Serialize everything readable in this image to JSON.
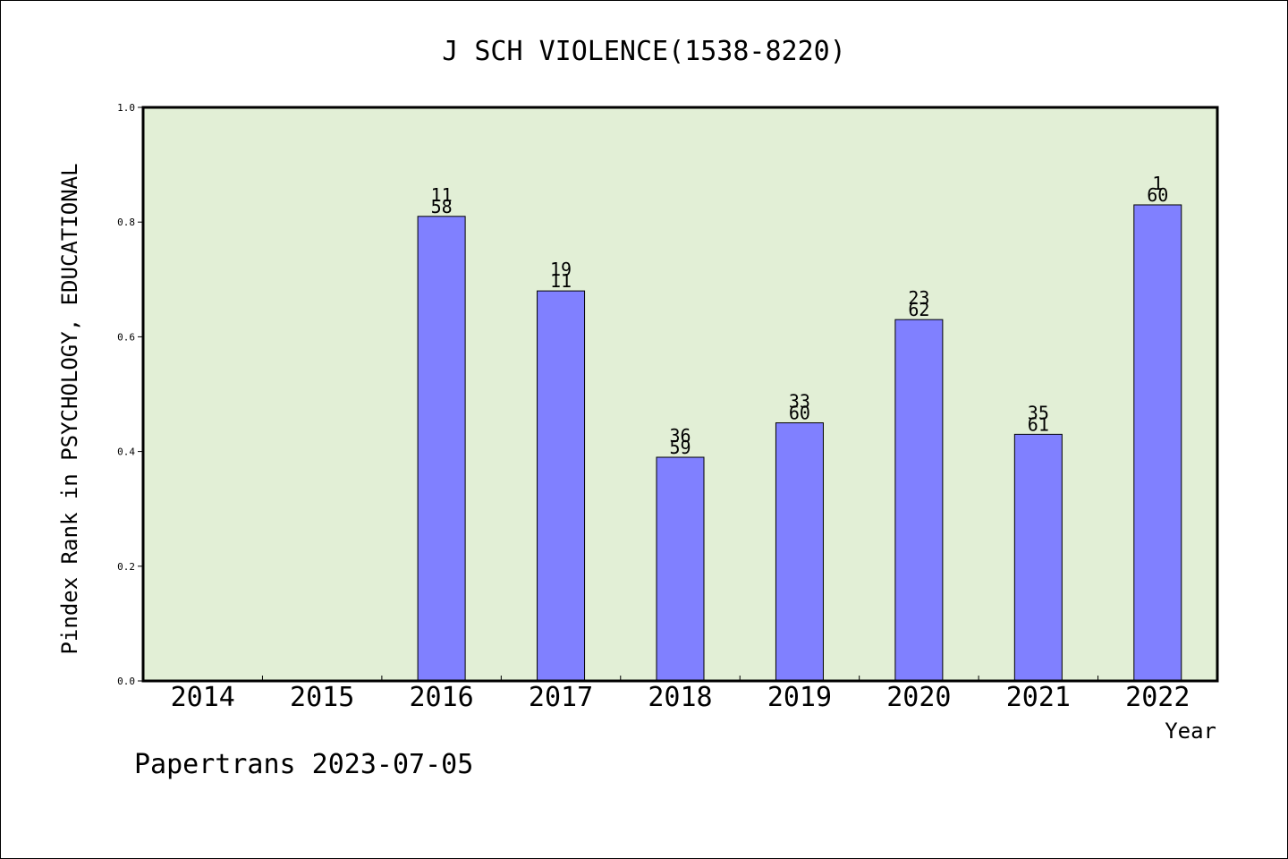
{
  "chart_data": {
    "type": "bar",
    "title": "J SCH VIOLENCE(1538-8220)",
    "xlabel": "Year",
    "ylabel": "Pindex Rank in PSYCHOLOGY, EDUCATIONAL",
    "ylim": [
      0,
      1.0
    ],
    "yticks": [
      "0.0",
      "0.2",
      "0.4",
      "0.6",
      "0.8",
      "1.0"
    ],
    "categories": [
      "2014",
      "2015",
      "2016",
      "2017",
      "2018",
      "2019",
      "2020",
      "2021",
      "2022"
    ],
    "values": [
      null,
      null,
      0.81,
      0.68,
      0.39,
      0.45,
      0.63,
      0.43,
      0.83
    ],
    "labels_top": [
      null,
      null,
      "11",
      "19",
      "36",
      "33",
      "23",
      "35",
      "1"
    ],
    "labels_bottom": [
      null,
      null,
      "58",
      "11",
      "59",
      "60",
      "62",
      "61",
      "60"
    ],
    "grid": false,
    "colors": {
      "bar": "#8080ff",
      "plot_bg": "#e2efd6",
      "axis": "#000000"
    }
  },
  "footer": "Papertrans 2023-07-05"
}
